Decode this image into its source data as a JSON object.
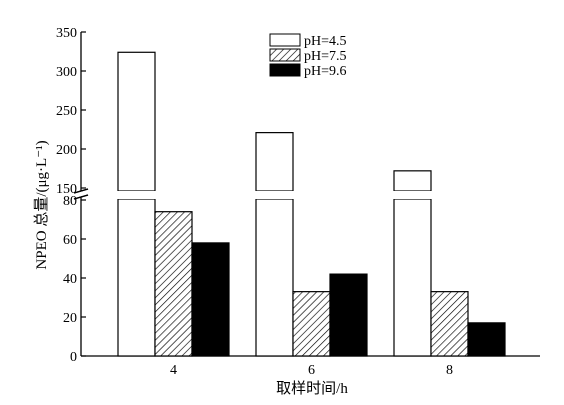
{
  "chart_data": {
    "type": "bar",
    "title": "",
    "xlabel": "取样时间/h",
    "ylabel": "NPEO 总量/(μg·L⁻¹)",
    "categories": [
      "4",
      "6",
      "8"
    ],
    "series": [
      {
        "name": "pH=4.5",
        "values": [
          324,
          221,
          172
        ],
        "pattern": "open",
        "color": "#ffffff"
      },
      {
        "name": "pH=7.5",
        "values": [
          74,
          33,
          33
        ],
        "pattern": "hatched",
        "color": "#000000"
      },
      {
        "name": "pH=9.6",
        "values": [
          58,
          42,
          17
        ],
        "pattern": "solid",
        "color": "#000000"
      }
    ],
    "y_axis": {
      "broken": true,
      "lower_range": [
        0,
        80
      ],
      "upper_range": [
        150,
        350
      ],
      "lower_ticks": [
        "0",
        "20",
        "40",
        "60",
        "80"
      ],
      "upper_ticks": [
        "150",
        "200",
        "250",
        "300",
        "350"
      ]
    },
    "grid": false,
    "legend_position": "top-center"
  }
}
